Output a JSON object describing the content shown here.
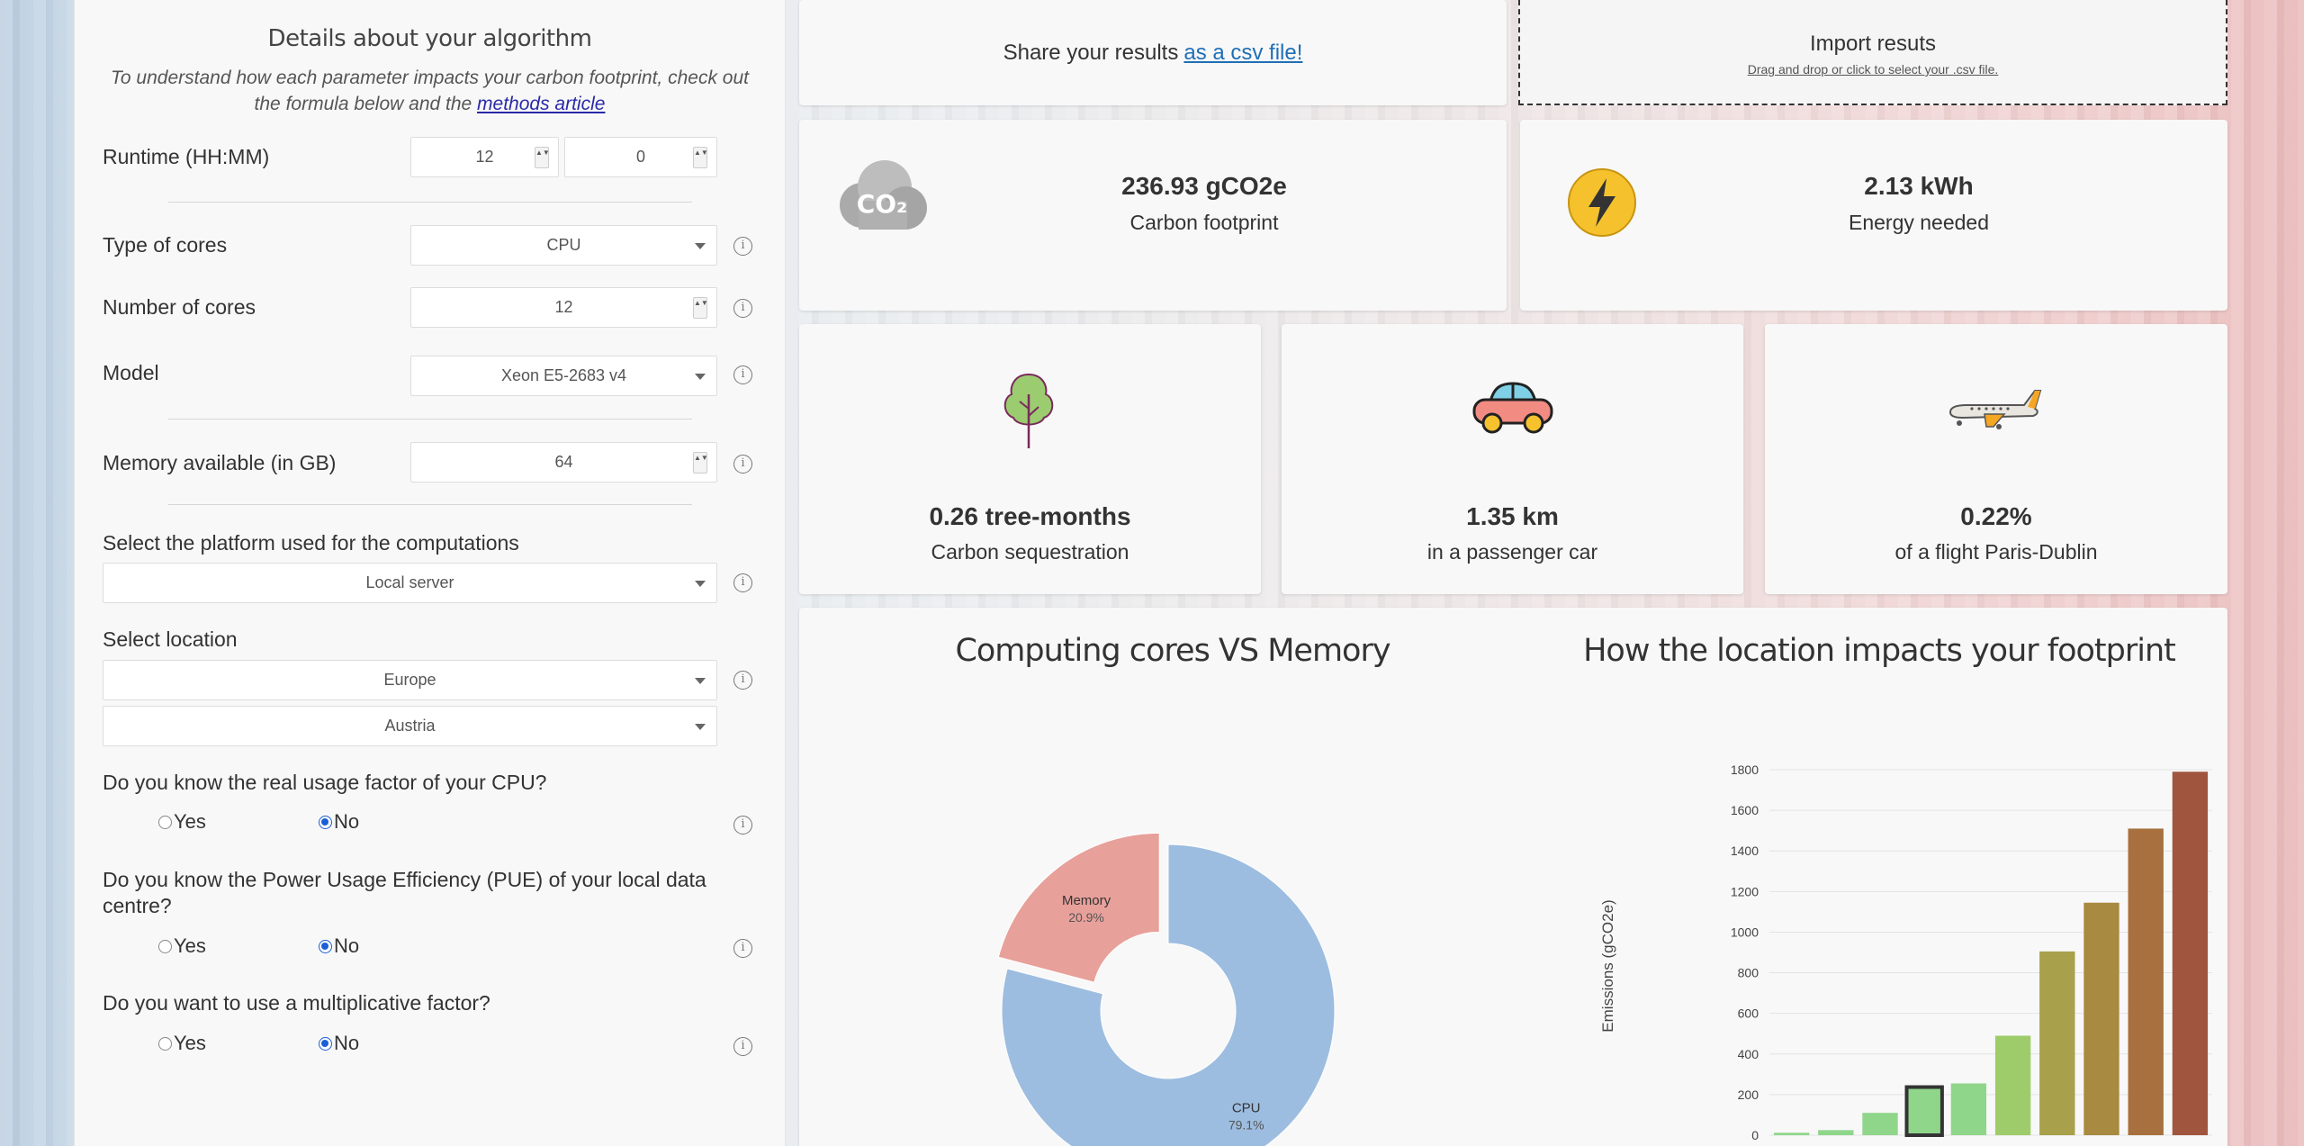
{
  "form": {
    "title": "Details about your algorithm",
    "subtitle_text": "To understand how each parameter impacts your carbon footprint, check out the formula below and the",
    "subtitle_link": "methods article",
    "runtime_label": "Runtime (HH:MM)",
    "runtime_hours": "12",
    "runtime_minutes": "0",
    "core_type_label": "Type of cores",
    "core_type_value": "CPU",
    "num_cores_label": "Number of cores",
    "num_cores_value": "12",
    "model_label": "Model",
    "model_value": "Xeon E5-2683 v4",
    "memory_label": "Memory available (in GB)",
    "memory_value": "64",
    "platform_label": "Select the platform used for the computations",
    "platform_value": "Local server",
    "location_label": "Select location",
    "continent_value": "Europe",
    "country_value": "Austria",
    "usage_question": "Do you know the real usage factor of your CPU?",
    "pue_question": "Do you know the Power Usage Efficiency (PUE) of your local data centre?",
    "multiplier_question": "Do you want to use a multiplicative factor?",
    "yes_label": "Yes",
    "no_label": "No",
    "info_glyph": "i",
    "spin_glyph": "▲▼"
  },
  "share": {
    "text": "Share your results",
    "link": "as a csv file!"
  },
  "import": {
    "title": "Import resuts",
    "subtitle": "Drag and drop or click to select your .csv file."
  },
  "metrics": {
    "co2_icon_text": "CO₂",
    "carbon_value": "236.93 gCO2e",
    "carbon_label": "Carbon footprint",
    "energy_value": "2.13 kWh",
    "energy_label": "Energy needed",
    "tree_value": "0.26 tree-months",
    "tree_label": "Carbon sequestration",
    "car_value": "1.35 km",
    "car_label": "in a passenger car",
    "flight_value": "0.22%",
    "flight_label": "of a flight Paris-Dublin"
  },
  "colors": {
    "cpu": "#9dbde0",
    "memory": "#e8a09a"
  },
  "chart_data": [
    {
      "type": "pie",
      "title": "Computing cores VS Memory",
      "slices": [
        {
          "label": "CPU",
          "value": 79.1,
          "display": "79.1%"
        },
        {
          "label": "Memory",
          "value": 20.9,
          "display": "20.9%"
        }
      ],
      "donut": true
    },
    {
      "type": "bar",
      "title": "How the location impacts your footprint",
      "ylabel": "Emissions (gCO2e)",
      "ylim": [
        0,
        1800
      ],
      "yticks": [
        0,
        200,
        400,
        600,
        800,
        1000,
        1200,
        1400,
        1600,
        1800
      ],
      "values": [
        12,
        25,
        110,
        237,
        255,
        490,
        905,
        1145,
        1510,
        1790
      ],
      "highlight_index": 3,
      "bar_colors": [
        "#8fd68a",
        "#8fd68a",
        "#8fd68a",
        "#8fd68a",
        "#8fd68a",
        "#9fcc6a",
        "#a8a04a",
        "#a88a40",
        "#a8703e",
        "#a0563e"
      ]
    }
  ]
}
